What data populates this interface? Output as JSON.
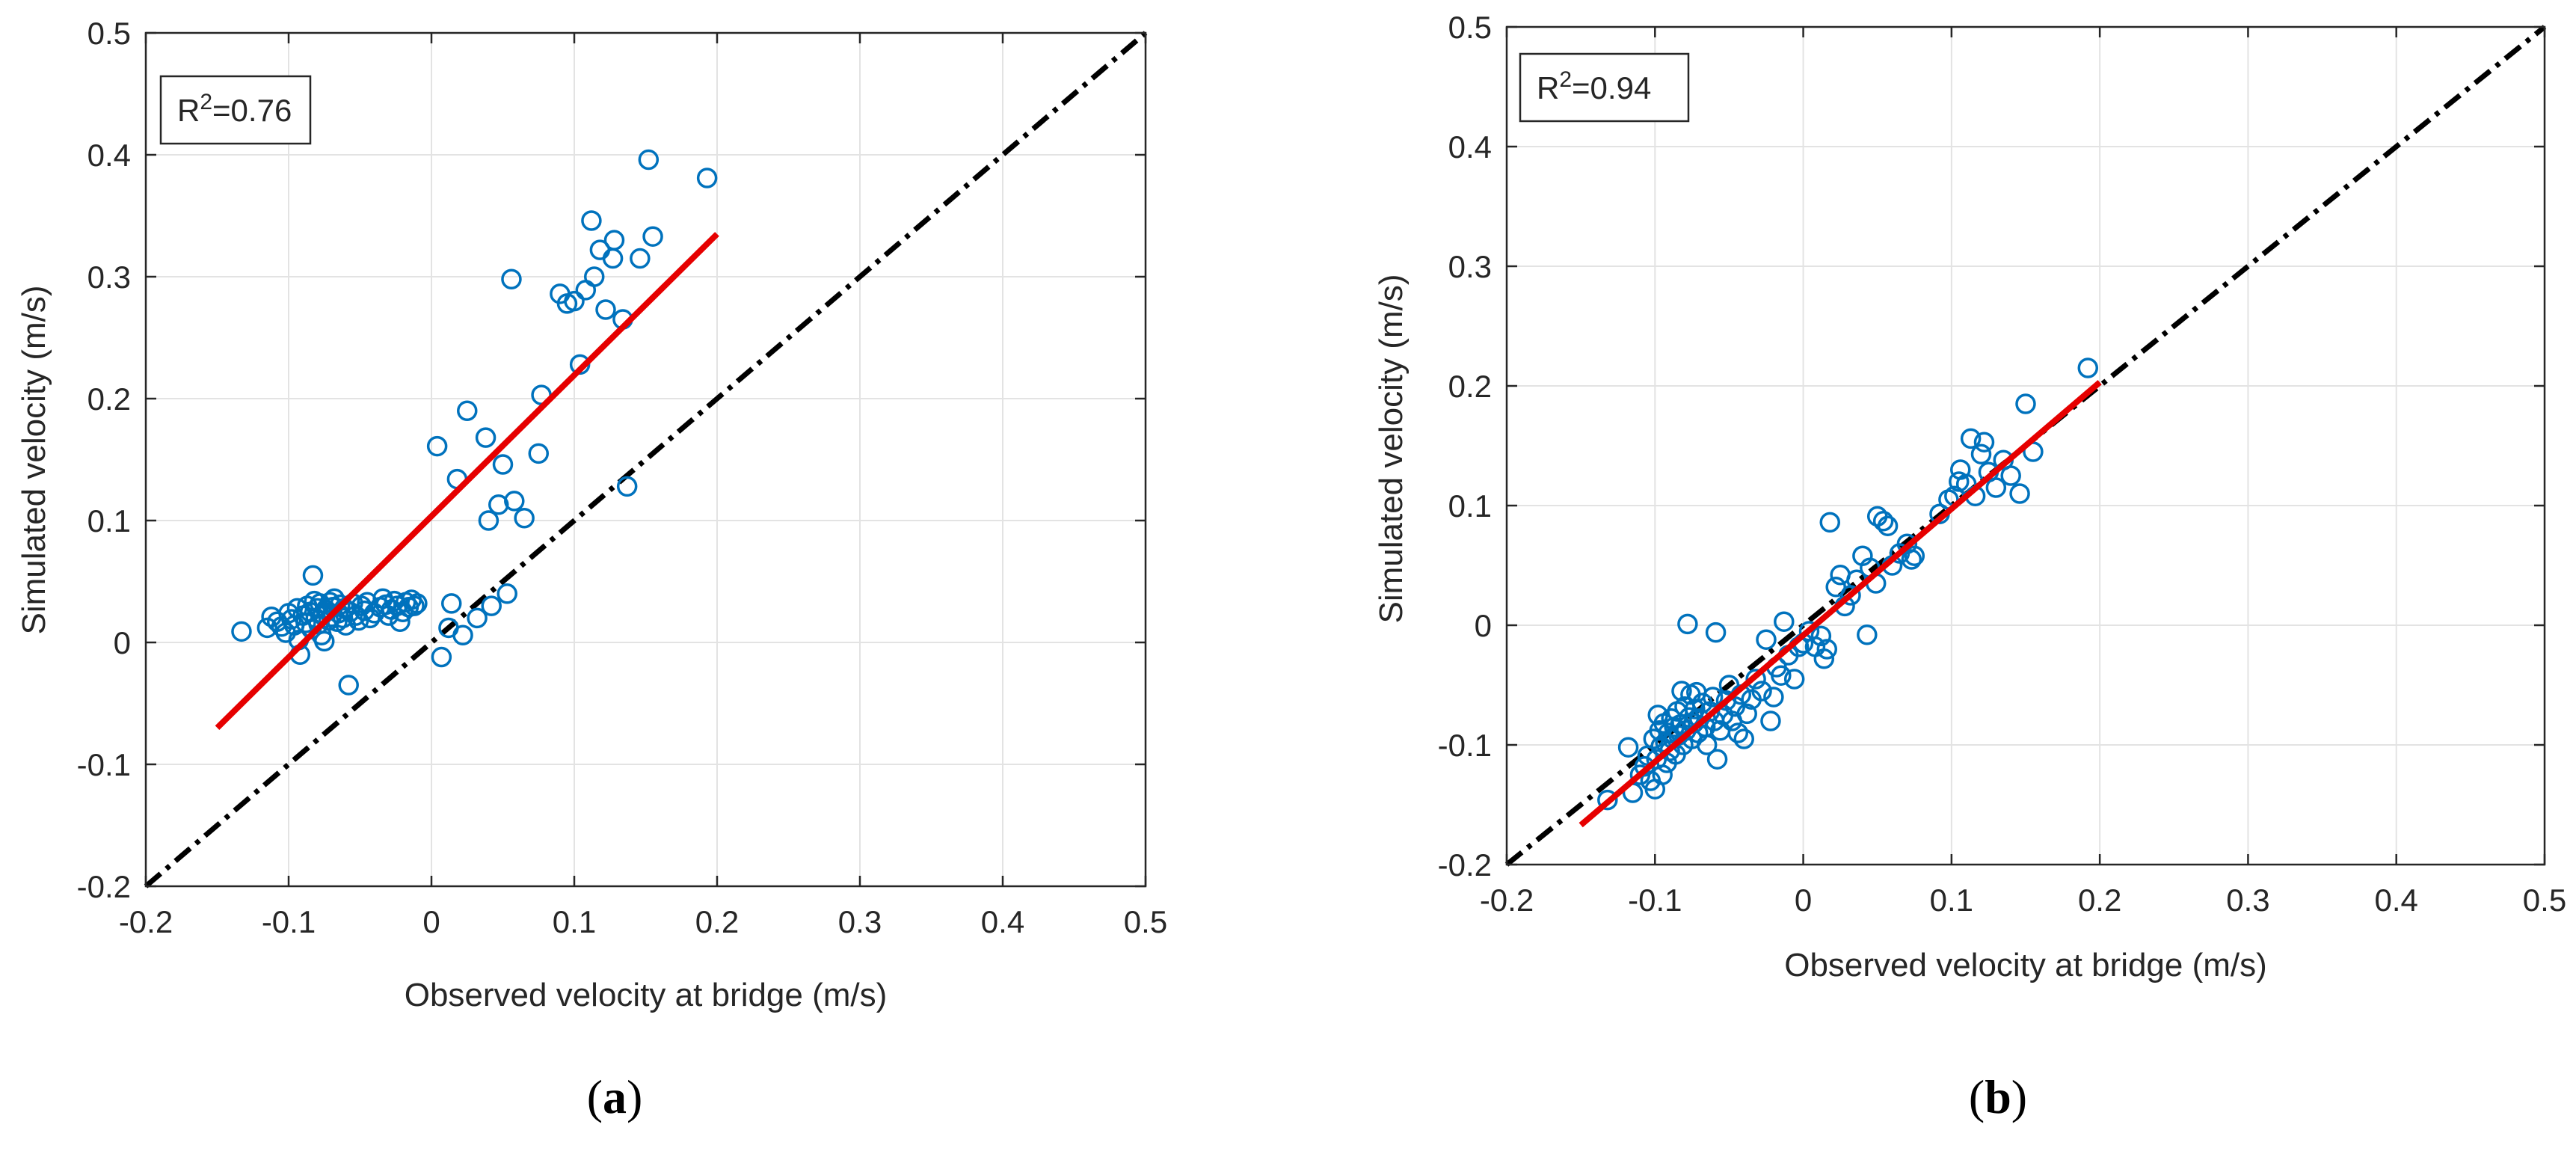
{
  "chart_data": [
    {
      "type": "scatter",
      "panel_label": "(a)",
      "xlabel": "Observed velocity at bridge (m/s)",
      "ylabel": "Simulated velocity (m/s)",
      "xlim": [
        -0.2,
        0.5
      ],
      "ylim": [
        -0.2,
        0.5
      ],
      "xticks": [
        -0.2,
        -0.1,
        0,
        0.1,
        0.2,
        0.3,
        0.4,
        0.5
      ],
      "yticks": [
        -0.2,
        -0.1,
        0,
        0.1,
        0.2,
        0.3,
        0.4,
        0.5
      ],
      "xtick_labels": [
        "-0.2",
        "-0.1",
        "0",
        "0.1",
        "0.2",
        "0.3",
        "0.4",
        "0.5"
      ],
      "ytick_labels": [
        "-0.2",
        "-0.1",
        "0",
        "0.1",
        "0.2",
        "0.3",
        "0.4",
        "0.5"
      ],
      "grid": true,
      "annotation": {
        "base": "R",
        "sup": "2",
        "rest": "=0.76"
      },
      "marker_color": "#0072BD",
      "fit_line": {
        "color": "#E60000",
        "x": [
          -0.15,
          0.2
        ],
        "y": [
          -0.07,
          0.335
        ]
      },
      "reference_line": {
        "style": "dash-dot",
        "color": "#000000",
        "x": [
          -0.2,
          0.5
        ],
        "y": [
          -0.2,
          0.5
        ]
      },
      "points": [
        [
          -0.133,
          0.009
        ],
        [
          -0.115,
          0.012
        ],
        [
          -0.112,
          0.021
        ],
        [
          -0.108,
          0.017
        ],
        [
          -0.105,
          0.013
        ],
        [
          -0.102,
          0.008
        ],
        [
          -0.1,
          0.024
        ],
        [
          -0.098,
          0.019
        ],
        [
          -0.096,
          0.014
        ],
        [
          -0.094,
          0.028
        ],
        [
          -0.093,
          0.002
        ],
        [
          -0.092,
          -0.01
        ],
        [
          -0.09,
          0.022
        ],
        [
          -0.088,
          0.016
        ],
        [
          -0.087,
          0.03
        ],
        [
          -0.085,
          0.025
        ],
        [
          -0.084,
          0.011
        ],
        [
          -0.083,
          0.055
        ],
        [
          -0.082,
          0.034
        ],
        [
          -0.081,
          0.02
        ],
        [
          -0.08,
          0.028
        ],
        [
          -0.079,
          0.015
        ],
        [
          -0.078,
          0.032
        ],
        [
          -0.077,
          0.006
        ],
        [
          -0.076,
          0.023
        ],
        [
          -0.075,
          0.001
        ],
        [
          -0.074,
          0.027
        ],
        [
          -0.072,
          0.018
        ],
        [
          -0.071,
          0.033
        ],
        [
          -0.07,
          0.021
        ],
        [
          -0.069,
          0.029
        ],
        [
          -0.068,
          0.036
        ],
        [
          -0.066,
          0.017
        ],
        [
          -0.065,
          0.024
        ],
        [
          -0.064,
          0.031
        ],
        [
          -0.062,
          0.02
        ],
        [
          -0.061,
          0.028
        ],
        [
          -0.06,
          0.014
        ],
        [
          -0.058,
          -0.035
        ],
        [
          -0.057,
          0.025
        ],
        [
          -0.055,
          0.032
        ],
        [
          -0.053,
          0.022
        ],
        [
          -0.051,
          0.018
        ],
        [
          -0.049,
          0.03
        ],
        [
          -0.047,
          0.026
        ],
        [
          -0.045,
          0.033
        ],
        [
          -0.043,
          0.02
        ],
        [
          -0.04,
          0.024
        ],
        [
          -0.036,
          0.029
        ],
        [
          -0.034,
          0.036
        ],
        [
          -0.032,
          0.031
        ],
        [
          -0.03,
          0.022
        ],
        [
          -0.028,
          0.027
        ],
        [
          -0.026,
          0.034
        ],
        [
          -0.024,
          0.03
        ],
        [
          -0.022,
          0.017
        ],
        [
          -0.02,
          0.025
        ],
        [
          -0.018,
          0.033
        ],
        [
          -0.016,
          0.029
        ],
        [
          -0.014,
          0.035
        ],
        [
          -0.012,
          0.03
        ],
        [
          -0.01,
          0.032
        ],
        [
          0.004,
          0.161
        ],
        [
          0.007,
          -0.012
        ],
        [
          0.012,
          0.012
        ],
        [
          0.014,
          0.032
        ],
        [
          0.018,
          0.134
        ],
        [
          0.022,
          0.006
        ],
        [
          0.025,
          0.19
        ],
        [
          0.032,
          0.02
        ],
        [
          0.038,
          0.168
        ],
        [
          0.04,
          0.1
        ],
        [
          0.042,
          0.03
        ],
        [
          0.047,
          0.113
        ],
        [
          0.05,
          0.146
        ],
        [
          0.053,
          0.04
        ],
        [
          0.056,
          0.298
        ],
        [
          0.058,
          0.116
        ],
        [
          0.065,
          0.102
        ],
        [
          0.075,
          0.155
        ],
        [
          0.077,
          0.203
        ],
        [
          0.09,
          0.286
        ],
        [
          0.095,
          0.278
        ],
        [
          0.1,
          0.28
        ],
        [
          0.104,
          0.228
        ],
        [
          0.108,
          0.289
        ],
        [
          0.112,
          0.346
        ],
        [
          0.114,
          0.3
        ],
        [
          0.118,
          0.322
        ],
        [
          0.122,
          0.273
        ],
        [
          0.127,
          0.315
        ],
        [
          0.128,
          0.33
        ],
        [
          0.134,
          0.265
        ],
        [
          0.137,
          0.128
        ],
        [
          0.146,
          0.315
        ],
        [
          0.152,
          0.396
        ],
        [
          0.155,
          0.333
        ],
        [
          0.193,
          0.381
        ]
      ]
    },
    {
      "type": "scatter",
      "panel_label": "(b)",
      "xlabel": "Observed velocity at bridge (m/s)",
      "ylabel": "Simulated velocity (m/s)",
      "xlim": [
        -0.2,
        0.5
      ],
      "ylim": [
        -0.2,
        0.5
      ],
      "xticks": [
        -0.2,
        -0.1,
        0,
        0.1,
        0.2,
        0.3,
        0.4,
        0.5
      ],
      "yticks": [
        -0.2,
        -0.1,
        0,
        0.1,
        0.2,
        0.3,
        0.4,
        0.5
      ],
      "xtick_labels": [
        "-0.2",
        "-0.1",
        "0",
        "0.1",
        "0.2",
        "0.3",
        "0.4",
        "0.5"
      ],
      "ytick_labels": [
        "-0.2",
        "-0.1",
        "0",
        "0.1",
        "0.2",
        "0.3",
        "0.4",
        "0.5"
      ],
      "grid": true,
      "annotation": {
        "base": "R",
        "sup": "2",
        "rest": "=0.94"
      },
      "marker_color": "#0072BD",
      "fit_line": {
        "color": "#E60000",
        "x": [
          -0.15,
          0.2
        ],
        "y": [
          -0.167,
          0.203
        ]
      },
      "reference_line": {
        "style": "dash-dot",
        "color": "#000000",
        "x": [
          -0.2,
          0.5
        ],
        "y": [
          -0.2,
          0.5
        ]
      },
      "points": [
        [
          -0.132,
          -0.146
        ],
        [
          -0.118,
          -0.102
        ],
        [
          -0.115,
          -0.14
        ],
        [
          -0.11,
          -0.125
        ],
        [
          -0.107,
          -0.118
        ],
        [
          -0.105,
          -0.109
        ],
        [
          -0.103,
          -0.13
        ],
        [
          -0.101,
          -0.095
        ],
        [
          -0.1,
          -0.137
        ],
        [
          -0.099,
          -0.112
        ],
        [
          -0.098,
          -0.075
        ],
        [
          -0.097,
          -0.088
        ],
        [
          -0.096,
          -0.101
        ],
        [
          -0.095,
          -0.125
        ],
        [
          -0.094,
          -0.082
        ],
        [
          -0.093,
          -0.098
        ],
        [
          -0.092,
          -0.115
        ],
        [
          -0.091,
          -0.09
        ],
        [
          -0.09,
          -0.105
        ],
        [
          -0.089,
          -0.078
        ],
        [
          -0.088,
          -0.095
        ],
        [
          -0.087,
          -0.085
        ],
        [
          -0.086,
          -0.108
        ],
        [
          -0.085,
          -0.072
        ],
        [
          -0.084,
          -0.092
        ],
        [
          -0.083,
          -0.083
        ],
        [
          -0.082,
          -0.055
        ],
        [
          -0.081,
          -0.1
        ],
        [
          -0.08,
          -0.068
        ],
        [
          -0.079,
          -0.088
        ],
        [
          -0.078,
          0.001
        ],
        [
          -0.077,
          -0.077
        ],
        [
          -0.076,
          -0.058
        ],
        [
          -0.075,
          -0.095
        ],
        [
          -0.074,
          -0.082
        ],
        [
          -0.073,
          -0.07
        ],
        [
          -0.072,
          -0.056
        ],
        [
          -0.071,
          -0.09
        ],
        [
          -0.07,
          -0.078
        ],
        [
          -0.068,
          -0.065
        ],
        [
          -0.066,
          -0.085
        ],
        [
          -0.065,
          -0.1
        ],
        [
          -0.063,
          -0.072
        ],
        [
          -0.061,
          -0.06
        ],
        [
          -0.06,
          -0.08
        ],
        [
          -0.059,
          -0.006
        ],
        [
          -0.058,
          -0.112
        ],
        [
          -0.056,
          -0.088
        ],
        [
          -0.054,
          -0.075
        ],
        [
          -0.052,
          -0.063
        ],
        [
          -0.05,
          -0.05
        ],
        [
          -0.048,
          -0.08
        ],
        [
          -0.046,
          -0.068
        ],
        [
          -0.044,
          -0.09
        ],
        [
          -0.042,
          -0.058
        ],
        [
          -0.04,
          -0.095
        ],
        [
          -0.038,
          -0.074
        ],
        [
          -0.035,
          -0.062
        ],
        [
          -0.032,
          -0.045
        ],
        [
          -0.028,
          -0.055
        ],
        [
          -0.025,
          -0.012
        ],
        [
          -0.022,
          -0.08
        ],
        [
          -0.02,
          -0.06
        ],
        [
          -0.018,
          -0.035
        ],
        [
          -0.015,
          -0.042
        ],
        [
          -0.013,
          0.003
        ],
        [
          -0.01,
          -0.025
        ],
        [
          -0.006,
          -0.045
        ],
        [
          -0.003,
          -0.018
        ],
        [
          0.0,
          -0.015
        ],
        [
          0.004,
          -0.005
        ],
        [
          0.008,
          -0.018
        ],
        [
          0.012,
          -0.009
        ],
        [
          0.014,
          -0.028
        ],
        [
          0.016,
          -0.02
        ],
        [
          0.018,
          0.086
        ],
        [
          0.022,
          0.032
        ],
        [
          0.025,
          0.042
        ],
        [
          0.028,
          0.016
        ],
        [
          0.032,
          0.025
        ],
        [
          0.036,
          0.038
        ],
        [
          0.04,
          0.058
        ],
        [
          0.043,
          -0.008
        ],
        [
          0.045,
          0.048
        ],
        [
          0.049,
          0.035
        ],
        [
          0.05,
          0.091
        ],
        [
          0.054,
          0.087
        ],
        [
          0.057,
          0.083
        ],
        [
          0.06,
          0.05
        ],
        [
          0.065,
          0.06
        ],
        [
          0.07,
          0.068
        ],
        [
          0.073,
          0.055
        ],
        [
          0.075,
          0.058
        ],
        [
          0.092,
          0.093
        ],
        [
          0.098,
          0.105
        ],
        [
          0.102,
          0.108
        ],
        [
          0.105,
          0.12
        ],
        [
          0.106,
          0.13
        ],
        [
          0.11,
          0.118
        ],
        [
          0.113,
          0.156
        ],
        [
          0.116,
          0.108
        ],
        [
          0.12,
          0.143
        ],
        [
          0.122,
          0.153
        ],
        [
          0.125,
          0.128
        ],
        [
          0.13,
          0.115
        ],
        [
          0.135,
          0.138
        ],
        [
          0.14,
          0.125
        ],
        [
          0.146,
          0.11
        ],
        [
          0.15,
          0.185
        ],
        [
          0.155,
          0.145
        ],
        [
          0.192,
          0.215
        ]
      ]
    }
  ]
}
